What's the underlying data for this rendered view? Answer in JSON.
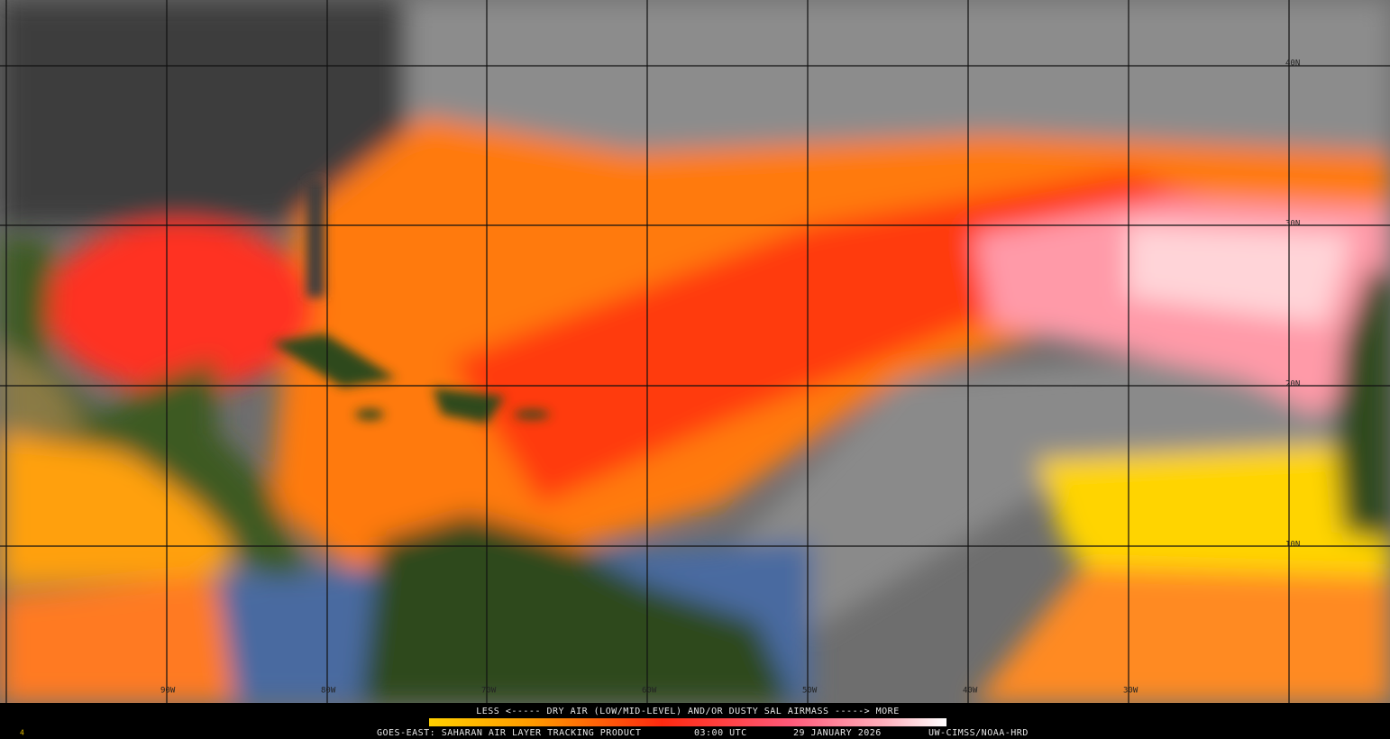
{
  "map": {
    "latitude_labels": [
      "40N",
      "30N",
      "20N",
      "10N"
    ],
    "longitude_labels": [
      "90W",
      "80W",
      "70W",
      "60W",
      "50W",
      "40W",
      "30W"
    ],
    "legend": {
      "text": "LESS <----- DRY AIR (LOW/MID-LEVEL) AND/OR DUSTY SAL AIRMASS -----> MORE"
    },
    "footer": {
      "frame": "4",
      "product": "GOES-EAST: SAHARAN AIR LAYER TRACKING PRODUCT",
      "time": "03:00 UTC",
      "date": "29 JANUARY 2026",
      "credit": "UW-CIMSS/NOAA-HRD"
    }
  }
}
